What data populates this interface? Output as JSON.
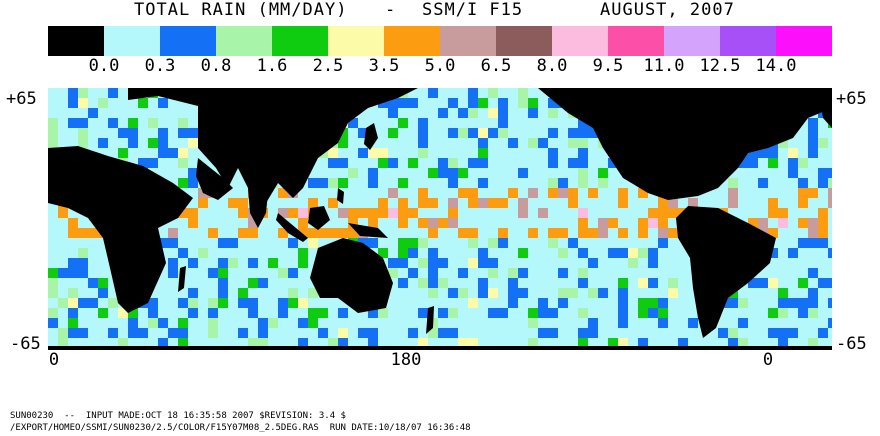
{
  "title": {
    "quantity": "TOTAL RAIN (MM/DAY)",
    "separator": "-",
    "instrument": "SSM/I F15",
    "date": "AUGUST, 2007"
  },
  "legend": {
    "colors": [
      "#000000",
      "#b4f8fc",
      "#1470f4",
      "#a8f4a8",
      "#10cc10",
      "#fcfca8",
      "#fc9c10",
      "#c89c9c",
      "#8c5c5c",
      "#fcbce0",
      "#fc50a8",
      "#d4a4fc",
      "#a850f8",
      "#fc10fc"
    ],
    "labels": [
      "0.0",
      "0.3",
      "0.8",
      "1.6",
      "2.5",
      "3.5",
      "5.0",
      "6.5",
      "8.0",
      "9.5",
      "11.0",
      "12.5",
      "14.0"
    ]
  },
  "axes": {
    "lat_top": "+65",
    "lat_bottom": "-65",
    "lon_left": "0",
    "lon_center": "180",
    "lon_right": "0"
  },
  "footer": {
    "line1": "SUN00230  --  INPUT MADE:OCT 18 16:35:58 2007 $REVISION: 3.4 $",
    "line2": "/EXPORT/HOMEO/SSMI/SUN0230/2.5/COLOR/F15Y07M08_2.5DEG.RAS  RUN DATE:10/18/07 16:36:48"
  }
}
